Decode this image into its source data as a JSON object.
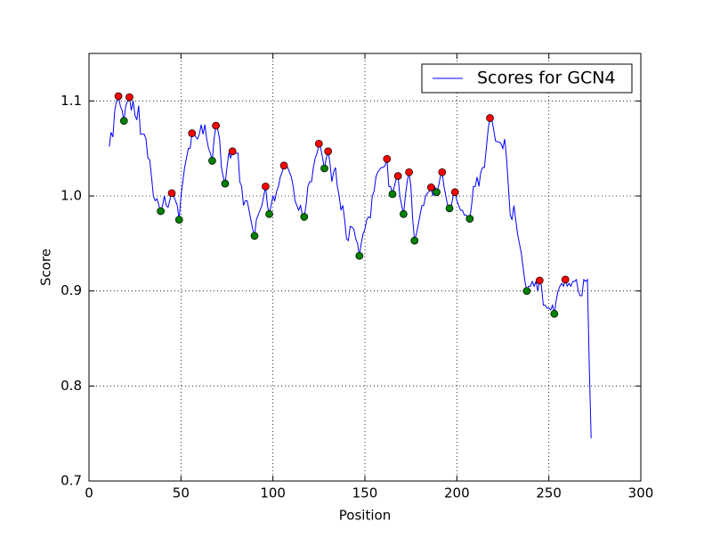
{
  "chart_data": {
    "type": "line",
    "xlabel": "Position",
    "ylabel": "Score",
    "xlim": [
      0,
      300
    ],
    "xticks": [
      0,
      50,
      100,
      150,
      200,
      250,
      300
    ],
    "ylim": [
      0.7,
      1.15
    ],
    "yticks": [
      0.7,
      0.8,
      0.9,
      {
        "value": 1,
        "label": "1.0"
      },
      1.1
    ],
    "grid": true,
    "legend": "upper right",
    "series": [
      {
        "name": "Scores for GCN4",
        "color": "#0000ff",
        "x": [
          11,
          12,
          13,
          14,
          15,
          16,
          17,
          18,
          19,
          20,
          21,
          22,
          23,
          24,
          25,
          26,
          27,
          28,
          29,
          30,
          31,
          32,
          33,
          34,
          35,
          36,
          37,
          38,
          39,
          40,
          41,
          42,
          43,
          44,
          45,
          46,
          47,
          48,
          49,
          50,
          51,
          52,
          53,
          54,
          55,
          56,
          57,
          58,
          59,
          60,
          61,
          62,
          63,
          64,
          65,
          66,
          67,
          68,
          69,
          70,
          71,
          72,
          73,
          74,
          75,
          76,
          77,
          78,
          79,
          80,
          81,
          82,
          83,
          84,
          85,
          86,
          87,
          88,
          89,
          90,
          91,
          92,
          93,
          94,
          95,
          96,
          97,
          98,
          99,
          100,
          101,
          102,
          103,
          104,
          105,
          106,
          107,
          108,
          109,
          110,
          111,
          112,
          113,
          114,
          115,
          116,
          117,
          118,
          119,
          120,
          121,
          122,
          123,
          124,
          125,
          126,
          127,
          128,
          129,
          130,
          131,
          132,
          133,
          134,
          135,
          136,
          137,
          138,
          139,
          140,
          141,
          142,
          143,
          144,
          145,
          146,
          147,
          148,
          149,
          150,
          151,
          152,
          153,
          154,
          155,
          156,
          157,
          158,
          159,
          160,
          161,
          162,
          163,
          164,
          165,
          166,
          167,
          168,
          169,
          170,
          171,
          172,
          173,
          174,
          175,
          176,
          177,
          178,
          179,
          180,
          181,
          182,
          183,
          184,
          185,
          186,
          187,
          188,
          189,
          190,
          191,
          192,
          193,
          194,
          195,
          196,
          197,
          198,
          199,
          200,
          201,
          202,
          203,
          204,
          205,
          206,
          207,
          208,
          209,
          210,
          211,
          212,
          213,
          214,
          215,
          216,
          217,
          218,
          219,
          220,
          221,
          222,
          223,
          224,
          225,
          226,
          227,
          228,
          229,
          230,
          231,
          232,
          233,
          234,
          235,
          236,
          237,
          238,
          239,
          240,
          241,
          242,
          243,
          244,
          245,
          246,
          247,
          248,
          249,
          250,
          251,
          252,
          253,
          254,
          255,
          256,
          257,
          258,
          259,
          260,
          261,
          262,
          263,
          264,
          265,
          266,
          267,
          268,
          269,
          270,
          271,
          272,
          273
        ],
        "values": [
          1.052,
          1.067,
          1.062,
          1.09,
          1.1,
          1.105,
          1.095,
          1.09,
          1.079,
          1.095,
          1.1,
          1.104,
          1.09,
          1.1,
          1.085,
          1.08,
          1.095,
          1.065,
          1.065,
          1.065,
          1.06,
          1.04,
          1.038,
          1.02,
          1.0,
          0.995,
          0.997,
          0.99,
          0.984,
          0.99,
          1.0,
          0.99,
          0.988,
          0.996,
          1.003,
          1.0,
          0.995,
          0.99,
          0.975,
          1.0,
          1.015,
          1.03,
          1.04,
          1.05,
          1.05,
          1.066,
          1.065,
          1.062,
          1.06,
          1.065,
          1.075,
          1.065,
          1.075,
          1.06,
          1.05,
          1.045,
          1.037,
          1.06,
          1.074,
          1.07,
          1.06,
          1.03,
          1.02,
          1.013,
          1.03,
          1.045,
          1.04,
          1.047,
          1.045,
          1.045,
          1.045,
          1.015,
          1.01,
          0.99,
          0.995,
          0.995,
          0.985,
          0.975,
          0.965,
          0.958,
          0.975,
          0.98,
          0.985,
          0.99,
          1.0,
          1.01,
          0.99,
          0.981,
          0.99,
          1.0,
          0.995,
          1.005,
          1.01,
          1.02,
          1.025,
          1.032,
          1.03,
          1.03,
          1.025,
          1.02,
          1.01,
          0.995,
          0.99,
          0.985,
          0.99,
          0.98,
          0.978,
          0.99,
          1.01,
          1.015,
          1.015,
          1.03,
          1.04,
          1.045,
          1.055,
          1.05,
          1.04,
          1.029,
          1.04,
          1.047,
          1.035,
          1.015,
          1.025,
          1.03,
          1.01,
          1.0,
          0.985,
          0.99,
          0.975,
          0.955,
          0.953,
          0.968,
          0.967,
          0.965,
          0.955,
          0.95,
          0.937,
          0.95,
          0.96,
          0.965,
          0.975,
          0.978,
          0.977,
          1.0,
          1.005,
          1.02,
          1.025,
          1.028,
          1.03,
          1.03,
          1.032,
          1.039,
          1.01,
          1.01,
          1.002,
          1.01,
          1.018,
          1.021,
          1.0,
          0.99,
          0.981,
          1.0,
          1.015,
          1.025,
          1.01,
          0.975,
          0.953,
          0.96,
          0.97,
          0.98,
          0.99,
          0.99,
          1.0,
          1.003,
          1.005,
          1.009,
          1.0,
          1.01,
          1.004,
          1.01,
          1.02,
          1.025,
          1.01,
          1.0,
          0.99,
          0.987,
          0.99,
          1.0,
          1.004,
          0.995,
          0.99,
          0.985,
          0.985,
          0.98,
          0.98,
          0.978,
          0.976,
          0.99,
          1.01,
          1.01,
          1.02,
          1.01,
          1.025,
          1.03,
          1.03,
          1.05,
          1.07,
          1.082,
          1.08,
          1.07,
          1.058,
          1.057,
          1.057,
          1.055,
          1.05,
          1.06,
          1.04,
          1.01,
          0.98,
          0.975,
          0.99,
          0.975,
          0.96,
          0.95,
          0.94,
          0.925,
          0.91,
          0.9,
          0.905,
          0.905,
          0.91,
          0.905,
          0.91,
          0.9,
          0.911,
          0.905,
          0.885,
          0.885,
          0.882,
          0.882,
          0.88,
          0.885,
          0.876,
          0.89,
          0.9,
          0.905,
          0.908,
          0.905,
          0.912,
          0.905,
          0.908,
          0.905,
          0.91,
          0.91,
          0.912,
          0.9,
          0.895,
          0.895,
          0.912,
          0.91,
          0.912,
          0.82,
          0.745
        ]
      }
    ],
    "markers": [
      {
        "color": "#ff0000",
        "x": [
          16,
          22,
          45,
          56,
          69,
          78,
          96,
          106,
          125,
          130,
          162,
          168,
          174,
          186,
          192,
          199,
          218,
          245,
          259
        ],
        "values": [
          1.105,
          1.104,
          1.003,
          1.066,
          1.074,
          1.047,
          1.01,
          1.032,
          1.055,
          1.047,
          1.039,
          1.021,
          1.025,
          1.009,
          1.025,
          1.004,
          1.082,
          0.911,
          0.912
        ]
      },
      {
        "color": "#008000",
        "x": [
          19,
          39,
          49,
          67,
          74,
          90,
          98,
          117,
          128,
          147,
          165,
          171,
          177,
          189,
          196,
          207,
          238,
          253
        ],
        "values": [
          1.079,
          0.984,
          0.975,
          1.037,
          1.013,
          0.958,
          0.981,
          0.978,
          1.029,
          0.937,
          1.002,
          0.981,
          0.953,
          1.004,
          0.987,
          0.976,
          0.9,
          0.876
        ]
      }
    ]
  }
}
